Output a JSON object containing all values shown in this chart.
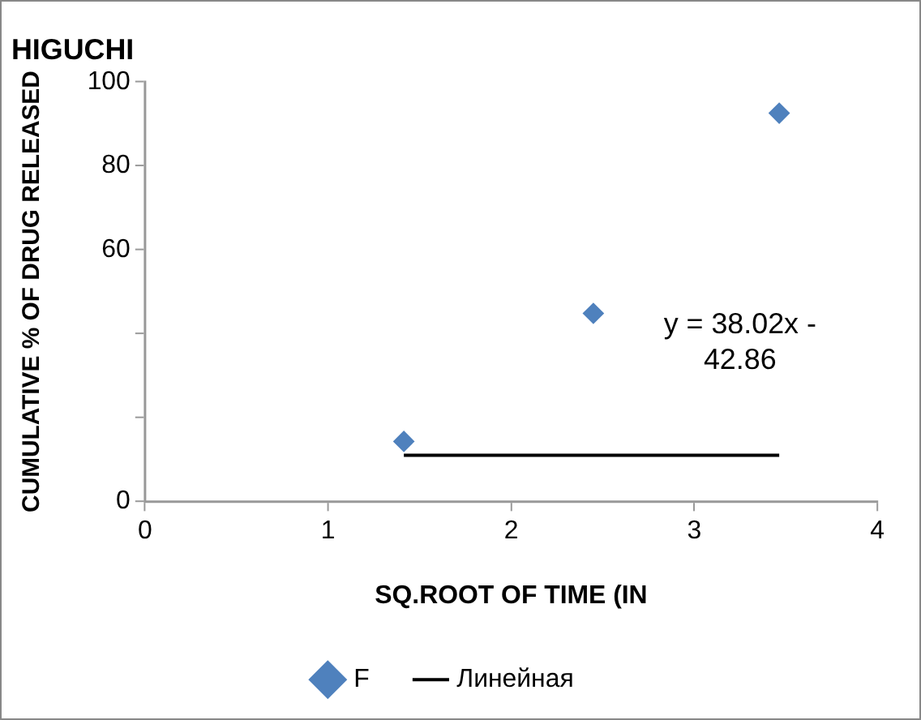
{
  "chart_data": {
    "type": "scatter",
    "title": "HIGUCHI",
    "xlabel": "SQ.ROOT OF TIME (IN",
    "ylabel": "CUMULATIVE % OF DRUG RELEASED",
    "x": [
      1.414,
      2.449,
      3.464
    ],
    "series": [
      {
        "name": "F",
        "color": "#4f81bd",
        "values": [
          14.3,
          44.8,
          92.5
        ],
        "marker": "diamond"
      },
      {
        "name": "Линейная",
        "type": "line",
        "color": "#000000",
        "x": [
          1.414,
          3.464
        ],
        "values": [
          11,
          11
        ],
        "marker": "none"
      }
    ],
    "annotations": [
      "y = 38.02x - 42.86"
    ],
    "xlim": [
      0,
      4
    ],
    "xticks": [
      0,
      1,
      2,
      3,
      4
    ],
    "ylim": [
      0,
      100
    ],
    "yticks": [
      0,
      {
        "value": 20,
        "label": null
      },
      {
        "value": 40,
        "label": null
      },
      60,
      80,
      100
    ],
    "grid": false,
    "legend": "bottom"
  }
}
